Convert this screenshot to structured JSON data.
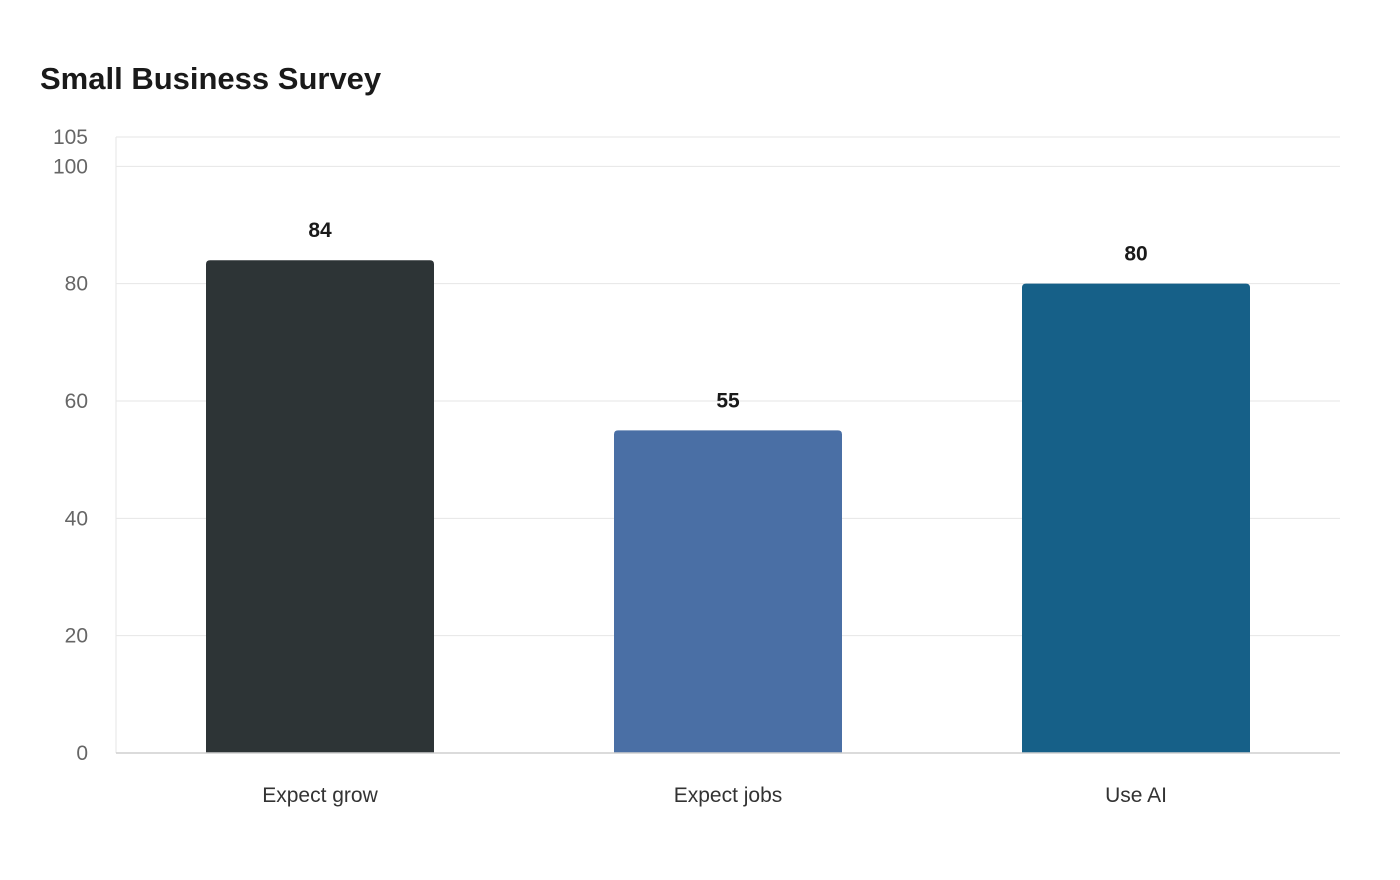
{
  "chart_data": {
    "type": "bar",
    "title": "Small Business Survey",
    "categories": [
      "Expect grow",
      "Expect jobs",
      "Use AI"
    ],
    "values": [
      84,
      55,
      80
    ],
    "colors": [
      "#2d3436",
      "#4a6fa5",
      "#166088"
    ],
    "y_ticks": [
      0,
      20,
      40,
      60,
      80,
      100,
      105
    ],
    "ylim": [
      0,
      105
    ],
    "grid": true,
    "legend": "none",
    "data_labels": true
  }
}
